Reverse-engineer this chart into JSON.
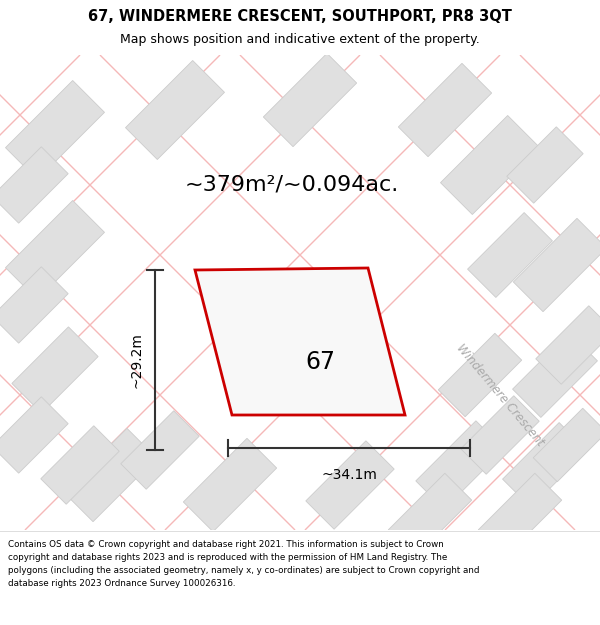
{
  "title_line1": "67, WINDERMERE CRESCENT, SOUTHPORT, PR8 3QT",
  "title_line2": "Map shows position and indicative extent of the property.",
  "area_text": "~379m²/~0.094ac.",
  "label_67": "67",
  "dim_width": "~34.1m",
  "dim_height": "~29.2m",
  "street_label": "Windermere Crescent",
  "footer_lines": [
    "Contains OS data © Crown copyright and database right 2021. This information is subject to Crown copyright and database rights 2023 and is reproduced with the permission of",
    "HM Land Registry. The polygons (including the associated geometry, namely x, y co-ordinates) are subject to Crown copyright and database rights 2023 Ordnance Survey",
    "100026316."
  ],
  "map_bg": "#ffffff",
  "road_color": "#f5b8b8",
  "highlight_color": "#cc0000",
  "building_face": "#e0e0e0",
  "building_edge": "#cccccc",
  "title_bg": "#ffffff",
  "footer_bg": "#ffffff"
}
